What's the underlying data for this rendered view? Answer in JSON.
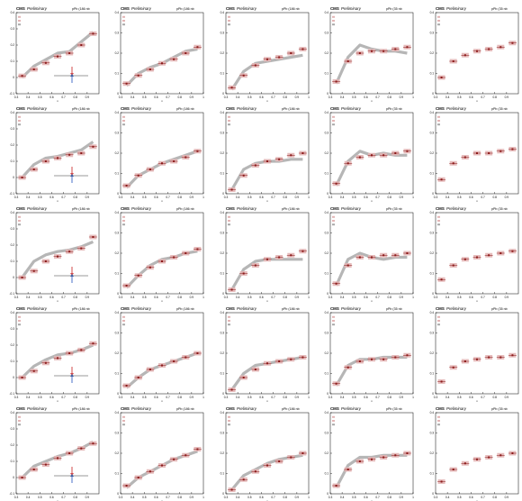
{
  "figure": {
    "header_experiment": "CMS",
    "header_status": "Preliminary",
    "header_pbpb": "pPb (186 nb",
    "header_pp": "pPb (35 nb",
    "x_ticks": [
      "0.3",
      "0.4",
      "0.5",
      "0.6",
      "0.7",
      "0.8",
      "0.9",
      "1"
    ],
    "x_ticks_short": [
      "0.3",
      "0.4",
      "0.5",
      "0.6",
      "0.7",
      "0.8",
      "0.9"
    ],
    "y_ticks": [
      "0",
      "0.1",
      "0.2",
      "0.3",
      "0.4"
    ],
    "y_ticks_ext": [
      "-0.1",
      "0",
      "0.1",
      "0.2",
      "0.3",
      "0.4"
    ],
    "x_axis_label": "x"
  },
  "chart_data": {
    "type": "scatter",
    "layout": "5 rows x 5 columns",
    "x_range": [
      0.3,
      1.0
    ],
    "colors": {
      "data_marker": "#8b1a1a",
      "data_band": "#e3b5b5",
      "model_band": "#a9a9a9",
      "arrow_red": "#d24a4a",
      "arrow_blue": "#4a72c8"
    },
    "panels_per_row": [
      {
        "row": 1,
        "x": [
          0.35,
          0.45,
          0.55,
          0.65,
          0.75,
          0.85,
          0.95
        ],
        "columns": [
          {
            "y": [
              0.01,
              0.05,
              0.09,
              0.13,
              0.15,
              0.2,
              0.27
            ],
            "model": [
              0.0,
              0.07,
              0.11,
              0.15,
              0.16,
              0.22,
              0.28
            ],
            "ylim": [
              -0.1,
              0.4
            ]
          },
          {
            "y": [
              0.05,
              0.09,
              0.12,
              0.15,
              0.17,
              0.2,
              0.23
            ],
            "model": [
              0.04,
              0.1,
              0.13,
              0.15,
              0.18,
              0.21,
              0.22
            ],
            "ylim": [
              0,
              0.4
            ]
          },
          {
            "y": [
              0.03,
              0.09,
              0.14,
              0.17,
              0.18,
              0.2,
              0.22
            ],
            "model": [
              0.02,
              0.11,
              0.15,
              0.16,
              0.17,
              0.18,
              0.19
            ],
            "ylim": [
              0,
              0.4
            ]
          },
          {
            "y": [
              0.06,
              0.16,
              0.2,
              0.21,
              0.21,
              0.22,
              0.23
            ],
            "model": [
              0.05,
              0.18,
              0.24,
              0.22,
              0.21,
              0.21,
              0.2
            ],
            "ylim": [
              0,
              0.4
            ]
          },
          {
            "y": [
              0.08,
              0.16,
              0.19,
              0.21,
              0.22,
              0.23,
              0.25
            ],
            "model": [],
            "ylim": [
              0,
              0.4
            ]
          }
        ]
      },
      {
        "row": 2,
        "x": [
          0.35,
          0.45,
          0.55,
          0.65,
          0.75,
          0.85,
          0.95
        ],
        "columns": [
          {
            "y": [
              0.0,
              0.05,
              0.1,
              0.12,
              0.14,
              0.15,
              0.19
            ],
            "model": [
              0.0,
              0.08,
              0.12,
              0.13,
              0.15,
              0.17,
              0.22
            ],
            "ylim": [
              -0.1,
              0.4
            ]
          },
          {
            "y": [
              0.04,
              0.09,
              0.12,
              0.15,
              0.16,
              0.18,
              0.21
            ],
            "model": [
              0.03,
              0.09,
              0.12,
              0.15,
              0.17,
              0.19,
              0.21
            ],
            "ylim": [
              0,
              0.4
            ]
          },
          {
            "y": [
              0.02,
              0.09,
              0.14,
              0.16,
              0.17,
              0.19,
              0.2
            ],
            "model": [
              0.02,
              0.12,
              0.15,
              0.16,
              0.16,
              0.17,
              0.17
            ],
            "ylim": [
              0,
              0.4
            ]
          },
          {
            "y": [
              0.05,
              0.15,
              0.18,
              0.19,
              0.19,
              0.2,
              0.21
            ],
            "model": [
              0.04,
              0.16,
              0.21,
              0.19,
              0.2,
              0.19,
              0.19
            ],
            "ylim": [
              0,
              0.4
            ]
          },
          {
            "y": [
              0.07,
              0.15,
              0.18,
              0.2,
              0.2,
              0.21,
              0.22
            ],
            "model": [],
            "ylim": [
              0,
              0.4
            ]
          }
        ]
      },
      {
        "row": 3,
        "x": [
          0.35,
          0.45,
          0.55,
          0.65,
          0.75,
          0.85,
          0.95
        ],
        "columns": [
          {
            "y": [
              0.0,
              0.04,
              0.1,
              0.13,
              0.16,
              0.18,
              0.25
            ],
            "model": [
              0.0,
              0.1,
              0.14,
              0.16,
              0.17,
              0.19,
              0.22
            ],
            "ylim": [
              -0.1,
              0.4
            ]
          },
          {
            "y": [
              0.04,
              0.09,
              0.13,
              0.16,
              0.18,
              0.2,
              0.22
            ],
            "model": [
              0.03,
              0.09,
              0.14,
              0.17,
              0.18,
              0.2,
              0.21
            ],
            "ylim": [
              0,
              0.4
            ]
          },
          {
            "y": [
              0.02,
              0.1,
              0.14,
              0.17,
              0.18,
              0.19,
              0.21
            ],
            "model": [
              0.02,
              0.12,
              0.16,
              0.17,
              0.17,
              0.17,
              0.17
            ],
            "ylim": [
              0,
              0.4
            ]
          },
          {
            "y": [
              0.05,
              0.14,
              0.18,
              0.18,
              0.19,
              0.19,
              0.2
            ],
            "model": [
              0.04,
              0.17,
              0.2,
              0.18,
              0.17,
              0.18,
              0.18
            ],
            "ylim": [
              0,
              0.4
            ]
          },
          {
            "y": [
              0.07,
              0.14,
              0.17,
              0.18,
              0.19,
              0.2,
              0.21
            ],
            "model": [],
            "ylim": [
              0,
              0.4
            ]
          }
        ]
      },
      {
        "row": 4,
        "x": [
          0.35,
          0.45,
          0.55,
          0.65,
          0.75,
          0.85,
          0.95
        ],
        "columns": [
          {
            "y": [
              0.0,
              0.04,
              0.09,
              0.12,
              0.15,
              0.17,
              0.21
            ],
            "model": [
              0.0,
              0.07,
              0.11,
              0.14,
              0.15,
              0.17,
              0.2
            ],
            "ylim": [
              -0.1,
              0.4
            ]
          },
          {
            "y": [
              0.04,
              0.08,
              0.12,
              0.14,
              0.16,
              0.18,
              0.2
            ],
            "model": [
              0.03,
              0.08,
              0.12,
              0.14,
              0.16,
              0.18,
              0.2
            ],
            "ylim": [
              0,
              0.4
            ]
          },
          {
            "y": [
              0.02,
              0.08,
              0.12,
              0.15,
              0.16,
              0.17,
              0.18
            ],
            "model": [
              0.02,
              0.1,
              0.14,
              0.15,
              0.16,
              0.17,
              0.18
            ],
            "ylim": [
              0,
              0.4
            ]
          },
          {
            "y": [
              0.05,
              0.13,
              0.16,
              0.17,
              0.17,
              0.18,
              0.19
            ],
            "model": [
              0.04,
              0.14,
              0.17,
              0.17,
              0.18,
              0.18,
              0.18
            ],
            "ylim": [
              0,
              0.4
            ]
          },
          {
            "y": [
              0.06,
              0.13,
              0.16,
              0.17,
              0.18,
              0.18,
              0.19
            ],
            "model": [],
            "ylim": [
              0,
              0.4
            ]
          }
        ]
      },
      {
        "row": 5,
        "x": [
          0.35,
          0.45,
          0.55,
          0.65,
          0.75,
          0.85,
          0.95
        ],
        "columns": [
          {
            "y": [
              0.0,
              0.05,
              0.08,
              0.12,
              0.15,
              0.18,
              0.21
            ],
            "model": [
              0.0,
              0.07,
              0.1,
              0.13,
              0.15,
              0.18,
              0.22
            ],
            "ylim": [
              -0.1,
              0.4
            ]
          },
          {
            "y": [
              0.04,
              0.08,
              0.11,
              0.14,
              0.17,
              0.19,
              0.22
            ],
            "model": [
              0.03,
              0.08,
              0.11,
              0.14,
              0.17,
              0.19,
              0.21
            ],
            "ylim": [
              0,
              0.4
            ]
          },
          {
            "y": [
              0.02,
              0.07,
              0.11,
              0.14,
              0.16,
              0.18,
              0.2
            ],
            "model": [
              0.02,
              0.09,
              0.12,
              0.15,
              0.17,
              0.18,
              0.19
            ],
            "ylim": [
              0,
              0.4
            ]
          },
          {
            "y": [
              0.04,
              0.12,
              0.16,
              0.17,
              0.18,
              0.19,
              0.2
            ],
            "model": [
              0.03,
              0.14,
              0.18,
              0.18,
              0.19,
              0.19,
              0.19
            ],
            "ylim": [
              0,
              0.4
            ]
          },
          {
            "y": [
              0.06,
              0.12,
              0.15,
              0.17,
              0.18,
              0.19,
              0.2
            ],
            "model": [],
            "ylim": [
              0,
              0.4
            ]
          }
        ]
      }
    ]
  }
}
